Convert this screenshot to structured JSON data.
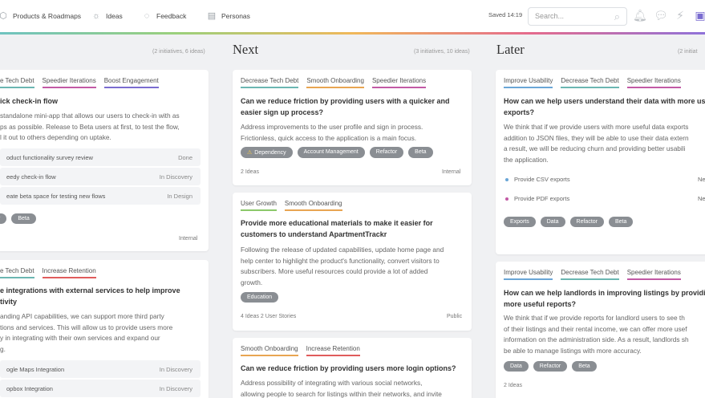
{
  "nav": {
    "products": "Products & Roadmaps",
    "ideas": "Ideas",
    "feedback": "Feedback",
    "personas": "Personas"
  },
  "toolbar": {
    "saved": "Saved 14:19",
    "search_placeholder": "Search..."
  },
  "columns": {
    "now": {
      "count": "(2 initiatives, 6 ideas)"
    },
    "next": {
      "title": "Next",
      "count": "(3 initiatives, 10 ideas)"
    },
    "later": {
      "title": "Later",
      "count": "(2 initiat"
    }
  },
  "now_cards": [
    {
      "tags": [
        "e Tech Debt",
        "Speedier Iterations",
        "Boost Engagement"
      ],
      "title": "ick check-in flow",
      "desc": [
        "standalone mini-app that allows our users to check-in with as",
        "ps as possible. Release to Beta users at first, to test the flow,",
        "l it out to others depending on uptake."
      ],
      "rows": [
        {
          "label": "oduct functionality survey review",
          "status": "Done"
        },
        {
          "label": "eedy check-in flow",
          "status": "In Discovery"
        },
        {
          "label": "eate beta space for testing new flows",
          "status": "In Design"
        }
      ],
      "pills": [
        "r",
        "Beta"
      ],
      "foot": "Internal"
    },
    {
      "tags": [
        "e Tech Debt",
        "Increase Retention"
      ],
      "title": [
        "e integrations with external services to help improve",
        "tivity"
      ],
      "desc": [
        "anding API capabilities, we can support more third party",
        "tions and services. This will allow us to provide users more",
        "y in integrating with their own services and expand our",
        "g."
      ],
      "rows": [
        {
          "label": "ogle Maps Integration",
          "status": "In Discovery"
        },
        {
          "label": "opbox Integration",
          "status": "In Discovery"
        }
      ]
    }
  ],
  "next_cards": [
    {
      "tags": [
        "Decrease Tech Debt",
        "Smooth Onboarding",
        "Speedier Iterations"
      ],
      "title": [
        "Can we reduce friction by providing users with a quicker and",
        "easier sign up process?"
      ],
      "desc": [
        "Address improvements to the user profile and sign in process.",
        "Frictionless, quick access to the application is a main focus."
      ],
      "pills": [
        "Dependency",
        "Account Management",
        "Refactor",
        "Beta"
      ],
      "foot_left": "2 Ideas",
      "foot_right": "Internal"
    },
    {
      "tags": [
        "User Growth",
        "Smooth Onboarding"
      ],
      "title": [
        "Provide more educational materials to make it easier for",
        "customers to understand ApartmentTrackr"
      ],
      "desc": [
        "Following the release of updated capabilities, update home page and",
        "help center to highlight the product's functionality, convert visitors to",
        "subscribers. More useful resources could provide a lot of added",
        "growth."
      ],
      "pills": [
        "Education"
      ],
      "foot_left": "4 Ideas  2 User Stories",
      "foot_right": "Public"
    },
    {
      "tags": [
        "Smooth Onboarding",
        "Increase Retention"
      ],
      "title": "Can we reduce friction by providing users more login options?",
      "desc": [
        "Address possibility of integrating with various social networks,",
        "allowing people to search for listings within their networks, and invite"
      ]
    }
  ],
  "later_cards": [
    {
      "tags": [
        "Improve Usability",
        "Decrease Tech Debt",
        "Speedier Iterations"
      ],
      "title": [
        "How can we help users understand their data with more use",
        "exports?"
      ],
      "desc": [
        "We think that if we provide users with more useful data exports",
        "addition to JSON files, they will be able to use their data extern",
        "a result, we will be reducing churn and providing better usabili",
        "the application."
      ],
      "list": [
        {
          "label": "Provide CSV exports",
          "status": "New"
        },
        {
          "label": "Provide PDF exports",
          "status": "New"
        }
      ],
      "pills": [
        "Exports",
        "Data",
        "Refactor",
        "Beta"
      ]
    },
    {
      "tags": [
        "Improve Usability",
        "Decrease Tech Debt",
        "Speedier Iterations"
      ],
      "title": [
        "How can we help landlords in improving listings by providin",
        "more useful reports?"
      ],
      "desc": [
        "We think that if we provide reports for landlord users to see th",
        "of their listings and their rental income, we can offer more usef",
        "information on the administration side. As a result, landlords sh",
        "be able to manage listings with more accuracy."
      ],
      "pills": [
        "Data",
        "Refactor",
        "Beta"
      ],
      "foot_left": "2 Ideas"
    }
  ]
}
